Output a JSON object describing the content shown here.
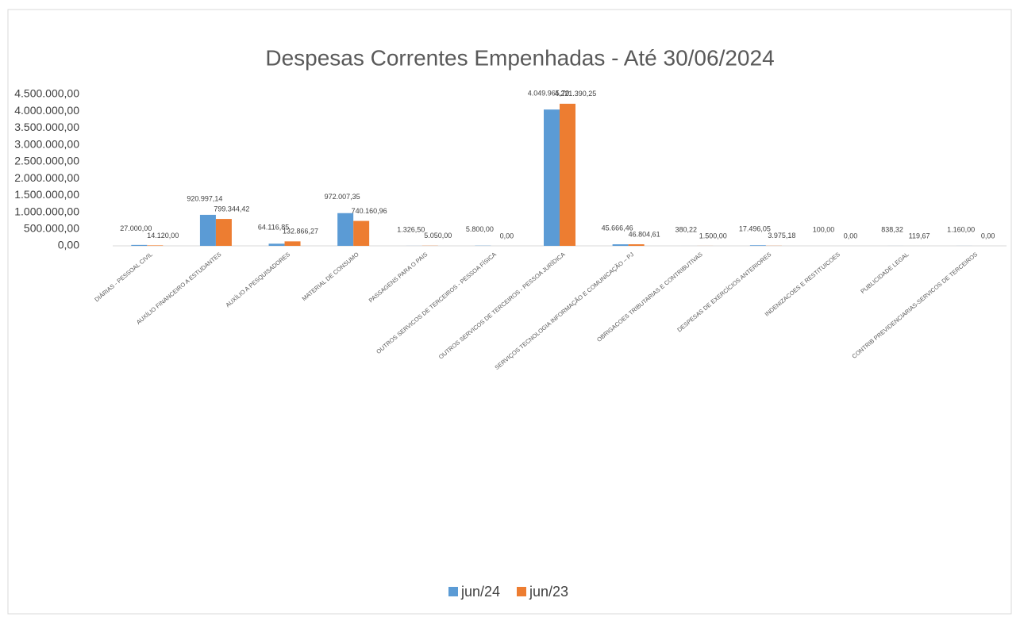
{
  "chart_data": {
    "type": "bar",
    "title": "Despesas Correntes Empenhadas - Até 30/06/2024",
    "categories": [
      "DIÁRIAS - PESSOAL CIVIL",
      "AUXÍLIO FINANCEIRO A ESTUDANTES",
      "AUXÍLIO A PESQUISADORES",
      "MATERIAL DE CONSUMO",
      "PASSAGENS PARA O PAIS",
      "OUTROS SERVICOS DE TERCEIROS - PESSOA FÍSICA",
      "OUTROS SERVICOS DE TERCEIROS - PESSOA JURÍDICA",
      "SERVIÇOS TECNOLOGIA INFORMAÇÃO E COMUNICAÇÃO – PJ",
      "OBRIGACOES TRIBUTARIAS E CONTRIBUTIVAS",
      "DESPESAS DE EXERCÍCIOS ANTERIORES",
      "INDENIZACOES E RESTITUICOES",
      "PUBLICIDADE LEGAL",
      "CONTRIB PREVIDENCIARIAS-SERVICOS DE TERCEIROS"
    ],
    "series": [
      {
        "name": "jun/24",
        "color": "#5b9bd5",
        "values": [
          27000,
          920997.14,
          64116.85,
          972007.35,
          1326.5,
          5800,
          4049965.7,
          45666.46,
          380.22,
          17496.05,
          100,
          838.32,
          1160
        ],
        "value_labels": [
          "27.000,00",
          "920.997,14",
          "64.116,85",
          "972.007,35",
          "1.326,50",
          "5.800,00",
          "4.049.965,70",
          "45.666,46",
          "380,22",
          "17.496,05",
          "100,00",
          "838,32",
          "1.160,00"
        ]
      },
      {
        "name": "jun/23",
        "color": "#ed7d31",
        "values": [
          14120,
          799344.42,
          132866.27,
          740160.96,
          5050,
          0,
          4221390.25,
          46804.61,
          1500,
          3975.18,
          0,
          119.67,
          0
        ],
        "value_labels": [
          "14.120,00",
          "799.344,42",
          "132.866,27",
          "740.160,96",
          "5.050,00",
          "0,00",
          "4.221.390,25",
          "46.804,61",
          "1.500,00",
          "3.975,18",
          "0,00",
          "119,67",
          "0,00"
        ]
      }
    ],
    "ylim": [
      0,
      4500000
    ],
    "yticks": [
      {
        "value": 0,
        "label": "0,00"
      },
      {
        "value": 500000,
        "label": "500.000,00"
      },
      {
        "value": 1000000,
        "label": "1.000.000,00"
      },
      {
        "value": 1500000,
        "label": "1.500.000,00"
      },
      {
        "value": 2000000,
        "label": "2.000.000,00"
      },
      {
        "value": 2500000,
        "label": "2.500.000,00"
      },
      {
        "value": 3000000,
        "label": "3.000.000,00"
      },
      {
        "value": 3500000,
        "label": "3.500.000,00"
      },
      {
        "value": 4000000,
        "label": "4.000.000,00"
      },
      {
        "value": 4500000,
        "label": "4.500.000,00"
      }
    ],
    "grid": false,
    "legend": "bottom"
  }
}
